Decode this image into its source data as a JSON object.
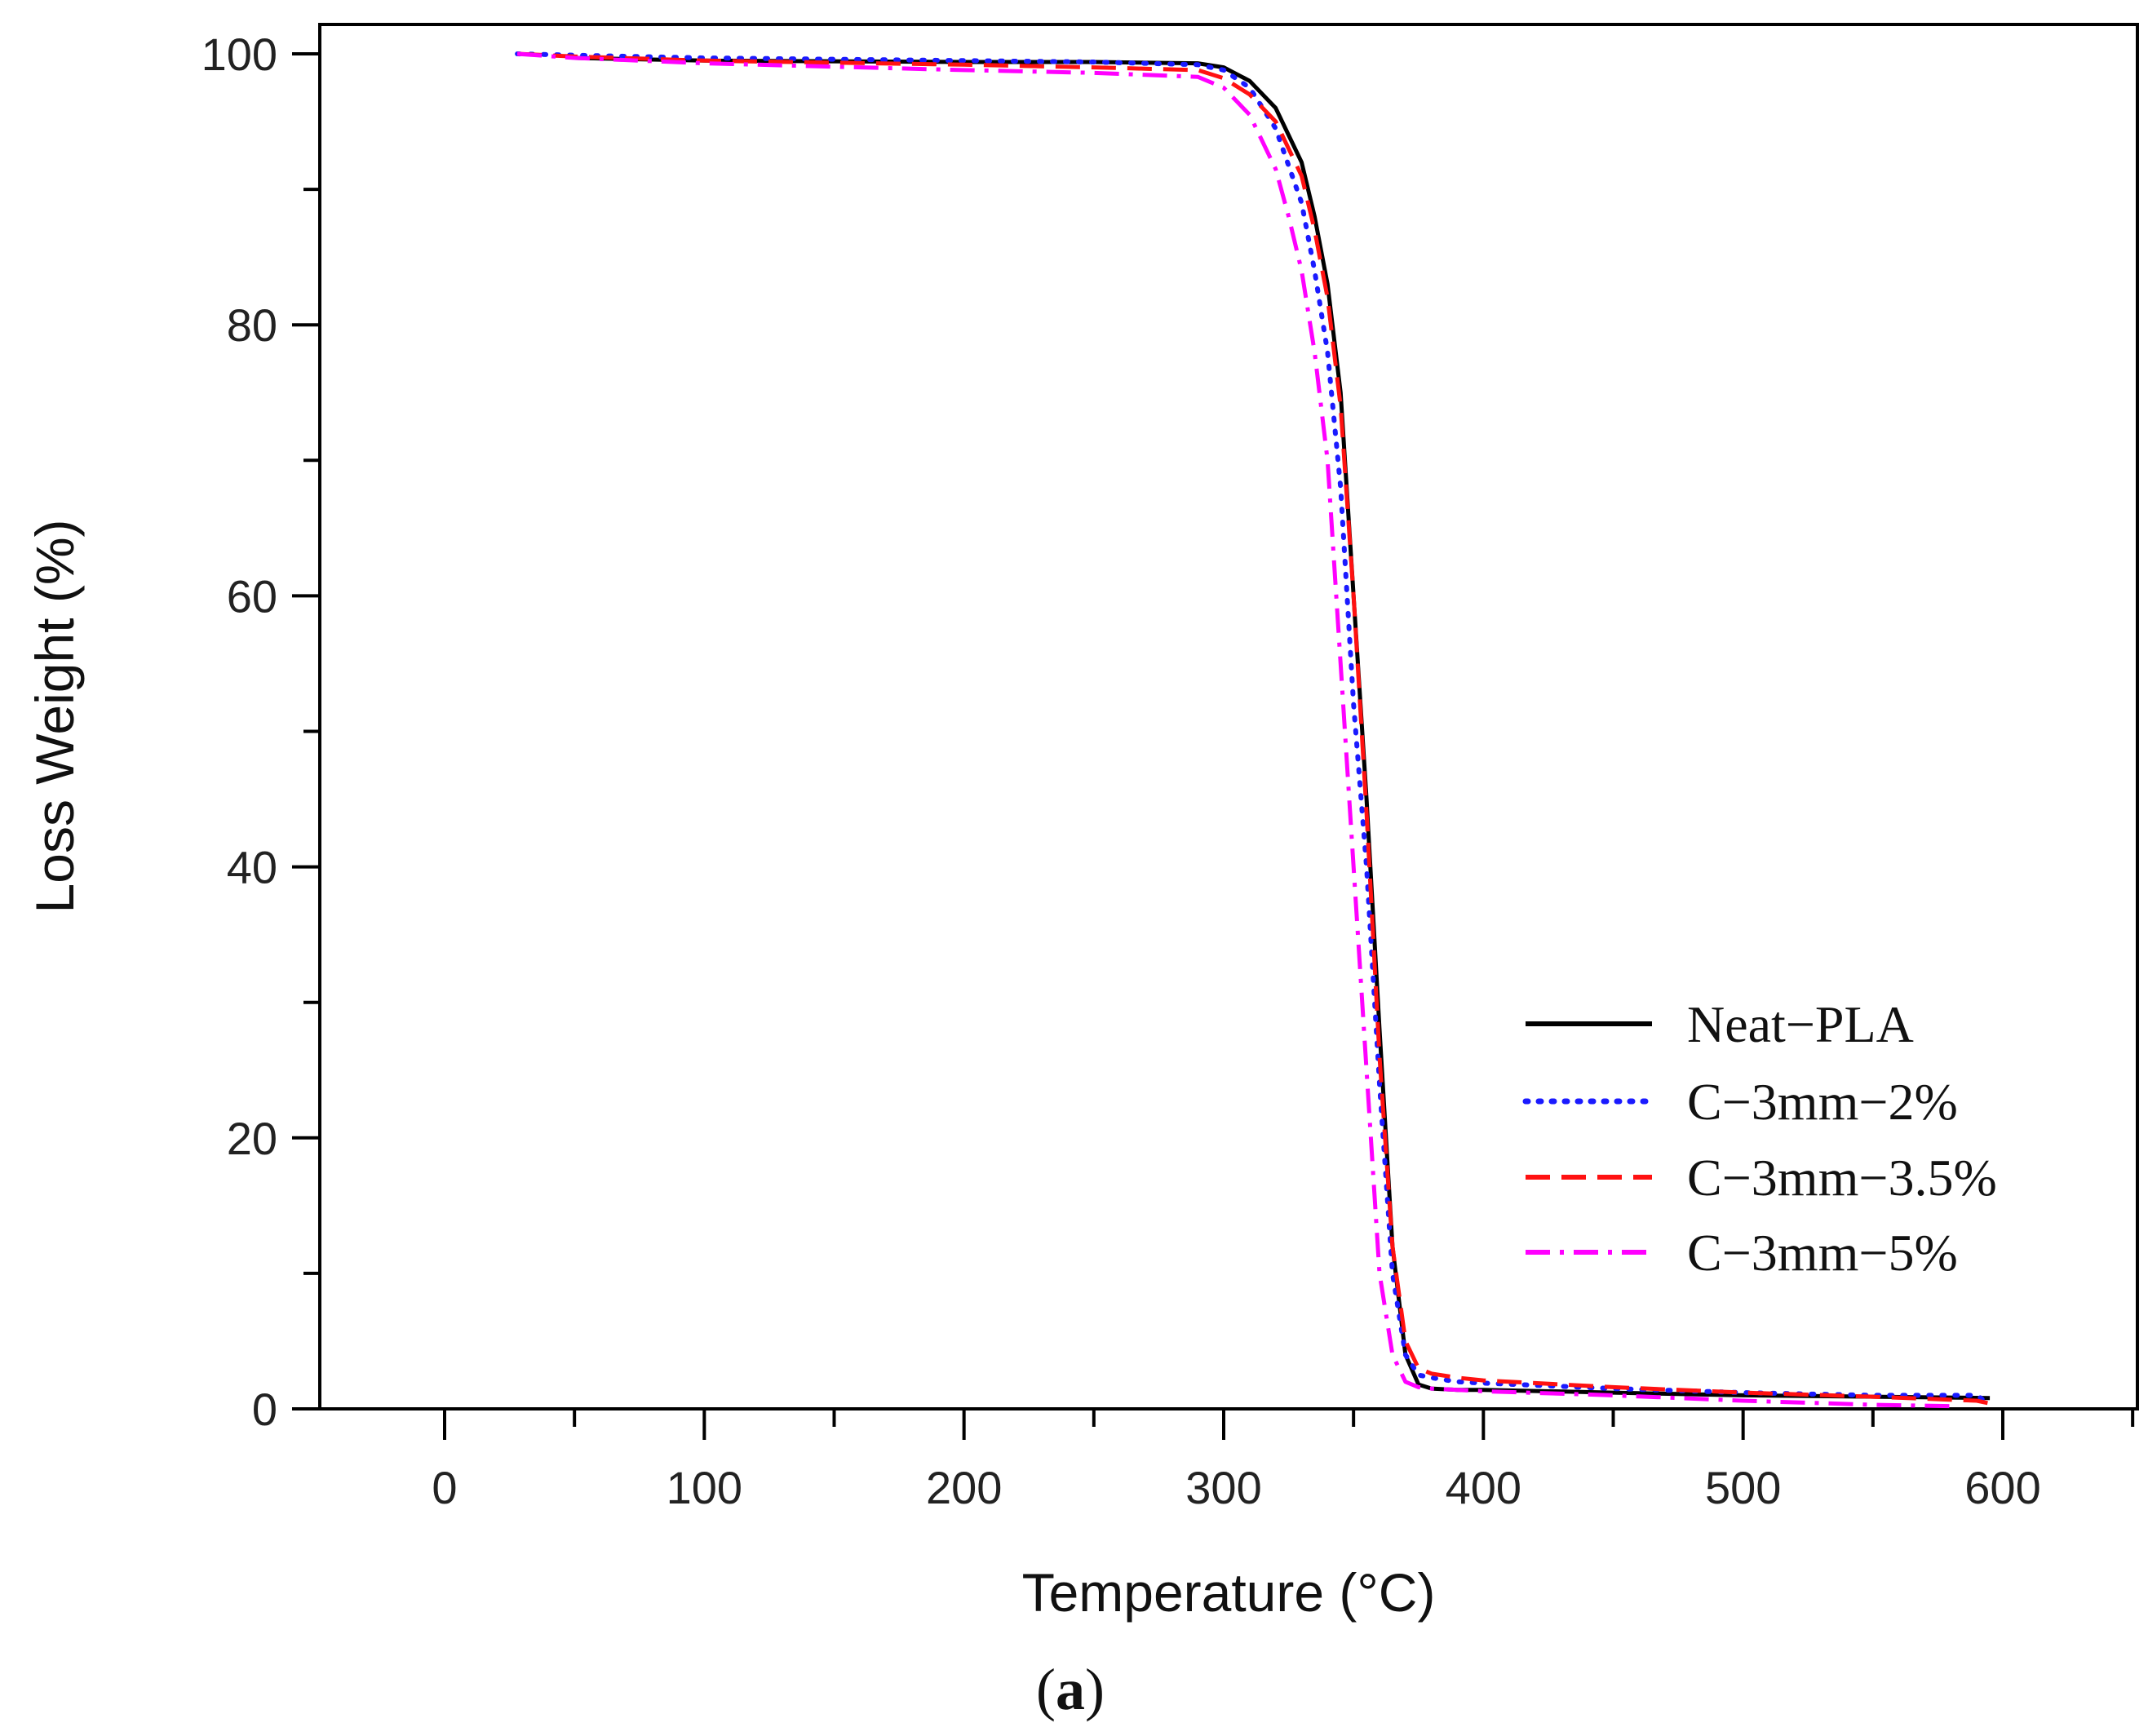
{
  "chart_data": {
    "type": "line",
    "xlabel": "Temperature (°C)",
    "ylabel": "Loss Weight (%)",
    "panel_label_open": "(",
    "panel_label_letter": "a",
    "panel_label_close": ")",
    "xlim": [
      -50,
      650
    ],
    "ylim": [
      0,
      102
    ],
    "x_ticks": [
      0,
      100,
      200,
      300,
      400,
      500,
      600
    ],
    "x_tick_labels": [
      "0",
      "100",
      "200",
      "300",
      "400",
      "500",
      "600"
    ],
    "y_ticks": [
      0,
      20,
      40,
      60,
      80,
      100
    ],
    "y_tick_labels": [
      "0",
      "20",
      "40",
      "60",
      "80",
      "100"
    ],
    "grid": false,
    "legend_position": "lower-right",
    "series": [
      {
        "name": "Neat−PLA",
        "color": "#000000",
        "style": "solid",
        "x": [
          50,
          100,
          200,
          250,
          290,
          300,
          310,
          320,
          330,
          335,
          340,
          345,
          350,
          355,
          360,
          365,
          370,
          375,
          380,
          390,
          400,
          450,
          500,
          550,
          595
        ],
        "y": [
          99.7,
          99.5,
          99.4,
          99.4,
          99.3,
          99.0,
          98.0,
          96.0,
          92.0,
          88.0,
          83.0,
          75.0,
          60.0,
          45.0,
          28.0,
          12.0,
          4.0,
          1.8,
          1.5,
          1.4,
          1.4,
          1.2,
          1.0,
          0.9,
          0.8
        ]
      },
      {
        "name": "C−3mm−2%",
        "color": "#1a1aff",
        "style": "dotted",
        "x": [
          28,
          50,
          100,
          200,
          250,
          290,
          300,
          310,
          320,
          330,
          335,
          340,
          345,
          350,
          355,
          360,
          365,
          370,
          375,
          380,
          390,
          400,
          450,
          500,
          550,
          590,
          595
        ],
        "y": [
          100.0,
          99.9,
          99.7,
          99.5,
          99.4,
          99.2,
          98.8,
          97.5,
          94.5,
          89.0,
          84.0,
          78.0,
          68.0,
          52.0,
          40.0,
          24.0,
          10.0,
          4.0,
          2.5,
          2.3,
          2.0,
          1.9,
          1.5,
          1.2,
          1.0,
          1.0,
          0.3
        ]
      },
      {
        "name": "C−3mm−3.5%",
        "color": "#ff1111",
        "style": "dashed",
        "x": [
          28,
          50,
          100,
          200,
          250,
          290,
          300,
          310,
          320,
          330,
          335,
          340,
          345,
          350,
          355,
          360,
          365,
          370,
          375,
          380,
          390,
          400,
          450,
          500,
          550,
          590,
          595
        ],
        "y": [
          100.0,
          99.8,
          99.5,
          99.2,
          99.0,
          98.8,
          98.2,
          97.0,
          95.0,
          91.0,
          87.0,
          82.0,
          74.0,
          60.0,
          44.0,
          26.0,
          12.0,
          5.0,
          3.0,
          2.6,
          2.3,
          2.1,
          1.6,
          1.2,
          0.9,
          0.6,
          0.4
        ]
      },
      {
        "name": "C−3mm−5%",
        "color": "#ff00ff",
        "style": "dashdot",
        "x": [
          28,
          50,
          100,
          200,
          250,
          290,
          300,
          310,
          320,
          325,
          330,
          335,
          340,
          345,
          350,
          355,
          360,
          365,
          370,
          375,
          380,
          390,
          400,
          450,
          500,
          550,
          580
        ],
        "y": [
          100.0,
          99.7,
          99.3,
          98.8,
          98.6,
          98.3,
          97.5,
          95.5,
          91.5,
          88.0,
          84.0,
          78.0,
          70.0,
          55.0,
          40.0,
          25.0,
          10.0,
          4.0,
          2.0,
          1.6,
          1.5,
          1.4,
          1.3,
          1.0,
          0.6,
          0.3,
          0.2
        ]
      }
    ]
  }
}
